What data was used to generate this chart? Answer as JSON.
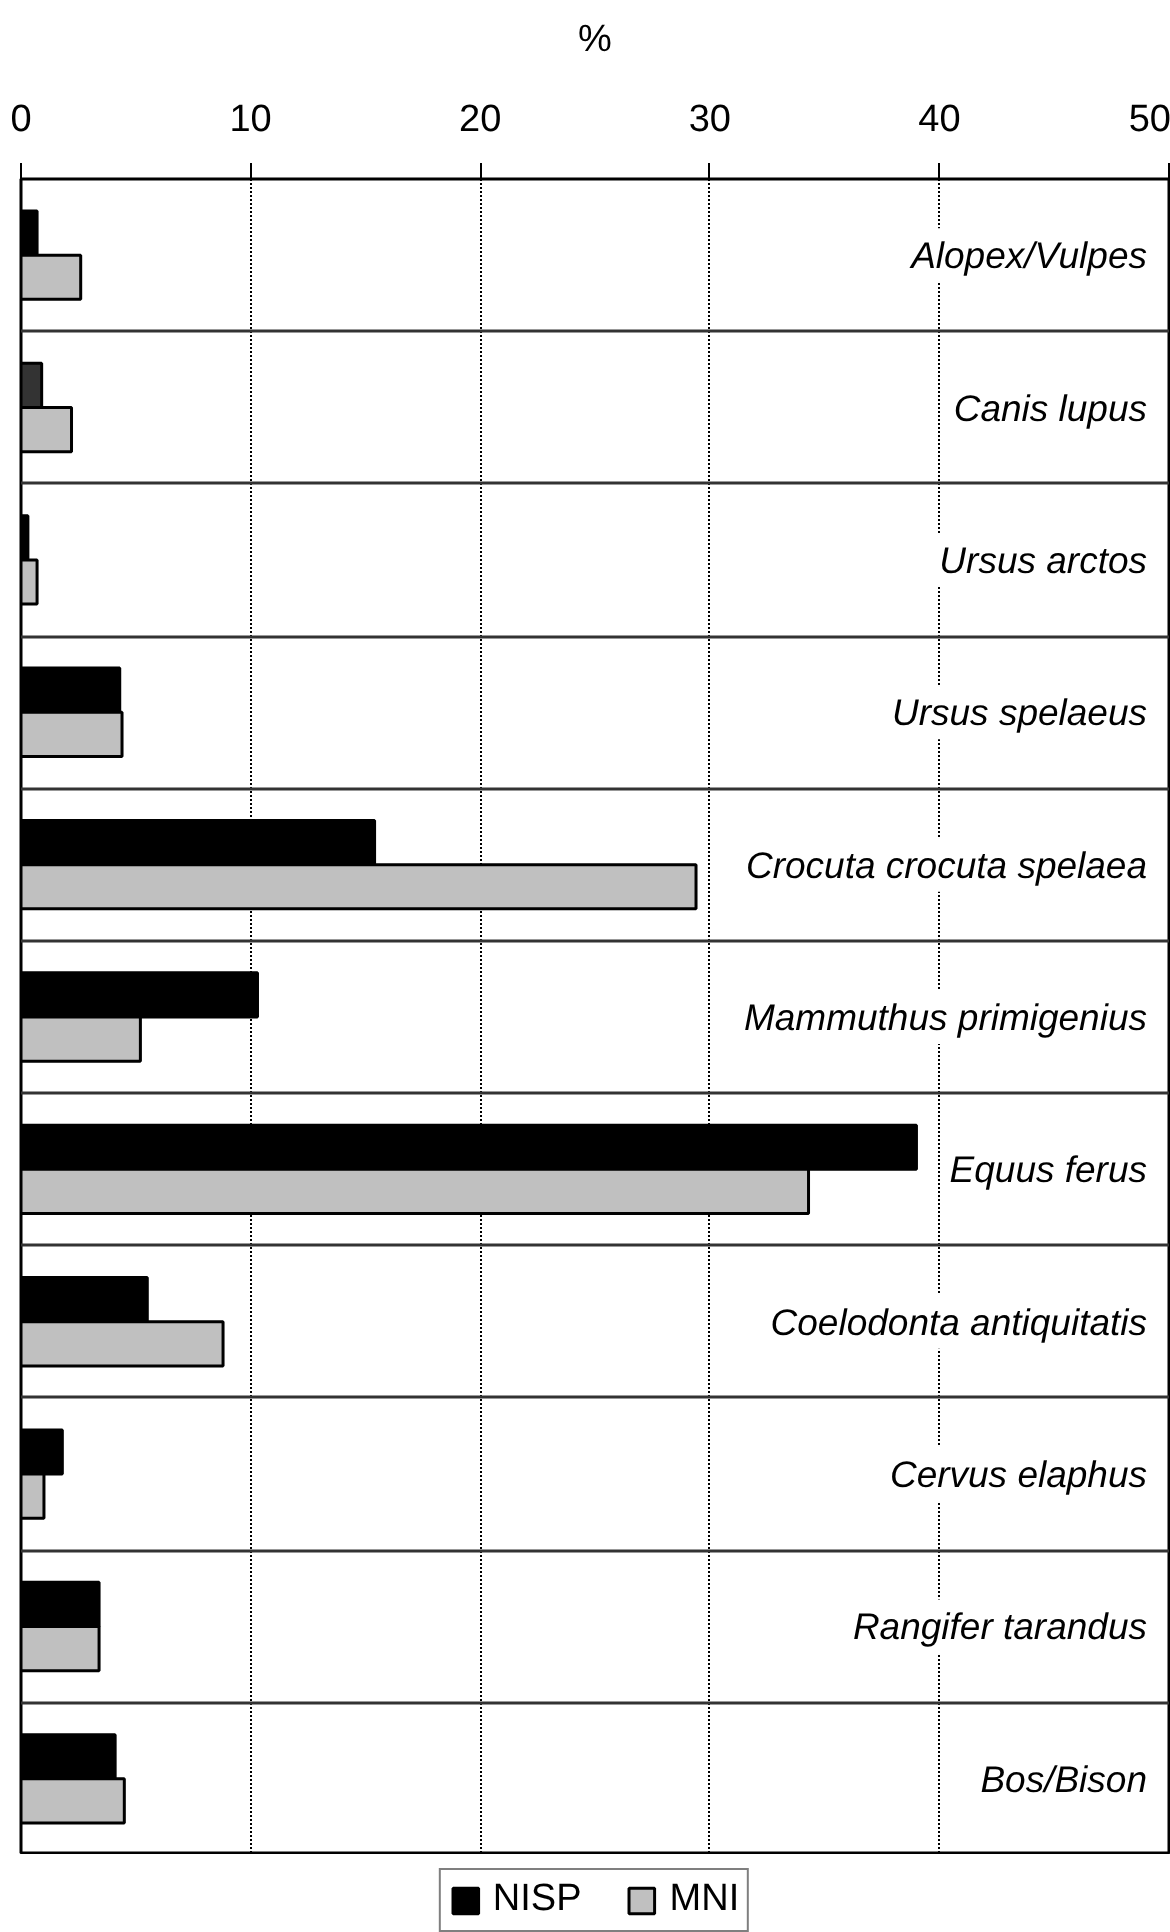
{
  "chart_data": {
    "type": "bar",
    "orientation": "horizontal",
    "xlabel": "%",
    "categories": [
      "Alopex/Vulpes",
      "Canis lupus",
      "Ursus arctos",
      "Ursus spelaeus",
      "Crocuta crocuta spelaea",
      "Mammuthus primigenius",
      "Equus ferus",
      "Coelodonta antiquitatis",
      "Cervus elaphus",
      "Rangifer tarandus",
      "Bos/Bison"
    ],
    "series": [
      {
        "name": "NISP",
        "color": "#000000",
        "colors": [
          "#000000",
          "#333333",
          "#000000",
          "#000000",
          "#000000",
          "#000000",
          "#000000",
          "#000000",
          "#000000",
          "#000000",
          "#000000"
        ],
        "values": [
          0.7,
          0.9,
          0.3,
          4.3,
          15.4,
          10.3,
          39.0,
          5.5,
          1.8,
          3.4,
          4.1
        ]
      },
      {
        "name": "MNI",
        "color": "#c0c0c0",
        "values": [
          2.6,
          2.2,
          0.7,
          4.4,
          29.4,
          5.2,
          34.3,
          8.8,
          1.0,
          3.4,
          4.5
        ]
      }
    ],
    "xlim": [
      0,
      50
    ],
    "xticks": [
      0,
      10,
      20,
      30,
      40,
      50
    ],
    "grid": true,
    "legend": "bottom"
  }
}
